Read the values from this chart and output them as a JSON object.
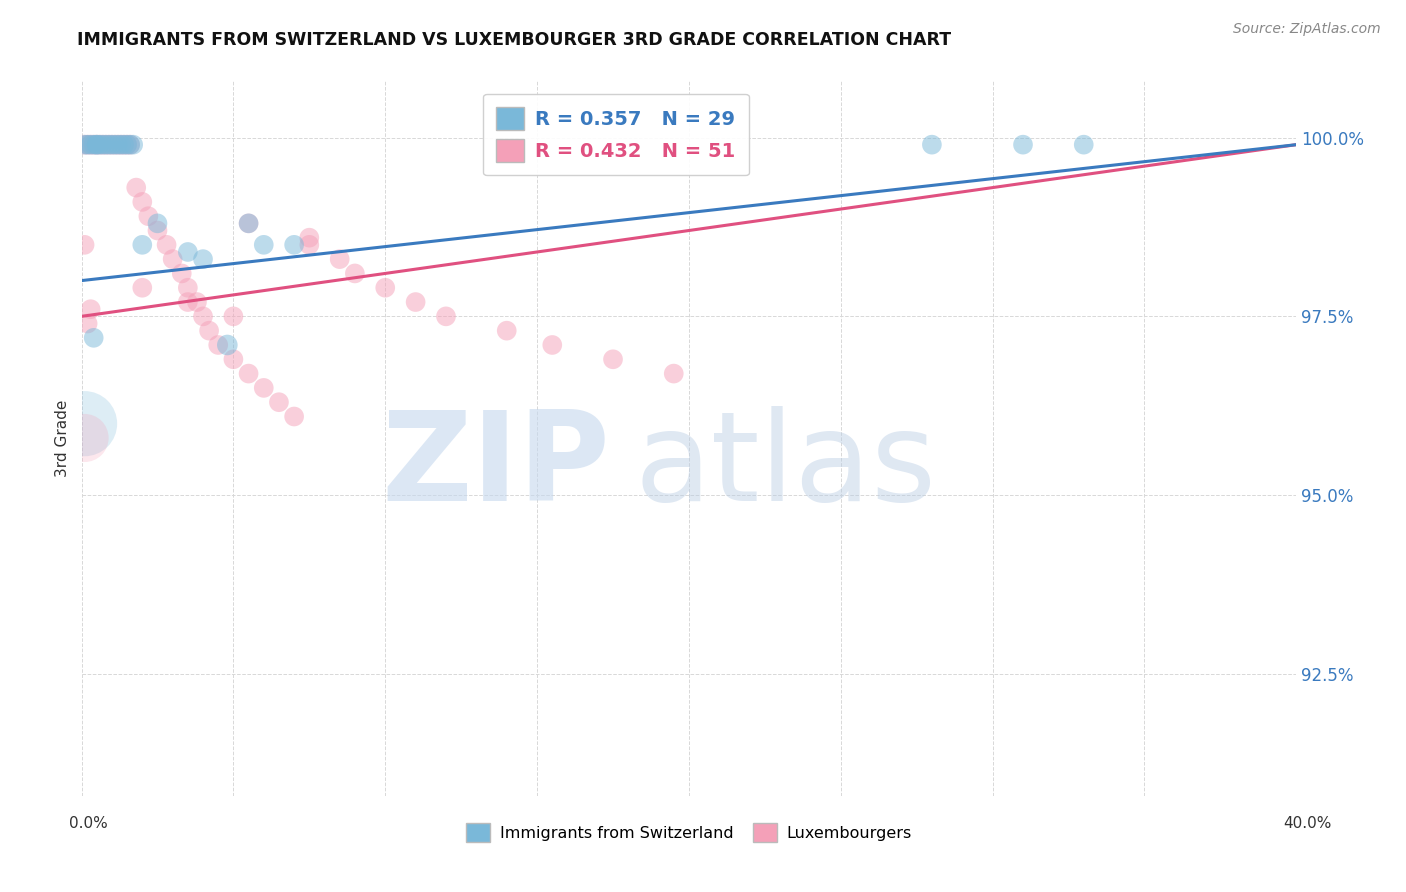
{
  "title": "IMMIGRANTS FROM SWITZERLAND VS LUXEMBOURGER 3RD GRADE CORRELATION CHART",
  "source": "Source: ZipAtlas.com",
  "ylabel": "3rd Grade",
  "ylabel_right_labels": [
    "100.0%",
    "97.5%",
    "95.0%",
    "92.5%"
  ],
  "ylabel_right_values": [
    1.0,
    0.975,
    0.95,
    0.925
  ],
  "x_min": 0.0,
  "x_max": 0.4,
  "y_min": 0.908,
  "y_max": 1.008,
  "swiss_color": "#7ab8d9",
  "lux_color": "#f4a0b8",
  "swiss_line_color": "#3a7abf",
  "lux_line_color": "#e05080",
  "R_swiss": 0.357,
  "N_swiss": 29,
  "R_lux": 0.432,
  "N_lux": 51,
  "grid_color": "#d8d8d8",
  "background_color": "#ffffff",
  "swiss_x": [
    0.001,
    0.002,
    0.003,
    0.004,
    0.005,
    0.005,
    0.006,
    0.007,
    0.008,
    0.009,
    0.01,
    0.011,
    0.012,
    0.013,
    0.014,
    0.015,
    0.016,
    0.017,
    0.02,
    0.025,
    0.035,
    0.04,
    0.055,
    0.06,
    0.07,
    0.28,
    0.31,
    0.33,
    0.004
  ],
  "swiss_y": [
    0.999,
    0.999,
    0.999,
    0.999,
    0.999,
    0.999,
    0.999,
    0.999,
    0.999,
    0.999,
    0.999,
    0.999,
    0.999,
    0.999,
    0.999,
    0.999,
    0.999,
    0.999,
    0.985,
    0.988,
    0.984,
    0.983,
    0.988,
    0.985,
    0.985,
    0.999,
    0.999,
    0.999,
    0.972
  ],
  "swiss_sizes": [
    120,
    120,
    120,
    120,
    120,
    120,
    120,
    120,
    120,
    120,
    120,
    120,
    120,
    120,
    120,
    120,
    120,
    120,
    120,
    120,
    120,
    120,
    120,
    120,
    120,
    120,
    120,
    120,
    120
  ],
  "lux_x": [
    0.001,
    0.002,
    0.003,
    0.004,
    0.005,
    0.006,
    0.007,
    0.008,
    0.009,
    0.01,
    0.011,
    0.012,
    0.013,
    0.014,
    0.015,
    0.016,
    0.018,
    0.02,
    0.022,
    0.025,
    0.028,
    0.03,
    0.033,
    0.035,
    0.038,
    0.04,
    0.042,
    0.045,
    0.05,
    0.055,
    0.06,
    0.065,
    0.07,
    0.075,
    0.085,
    0.09,
    0.1,
    0.11,
    0.12,
    0.14,
    0.155,
    0.175,
    0.195,
    0.055,
    0.075,
    0.02,
    0.035,
    0.05,
    0.003,
    0.002,
    0.001
  ],
  "lux_y": [
    0.999,
    0.999,
    0.999,
    0.999,
    0.999,
    0.999,
    0.999,
    0.999,
    0.999,
    0.999,
    0.999,
    0.999,
    0.999,
    0.999,
    0.999,
    0.999,
    0.993,
    0.991,
    0.989,
    0.987,
    0.985,
    0.983,
    0.981,
    0.979,
    0.977,
    0.975,
    0.973,
    0.971,
    0.969,
    0.967,
    0.965,
    0.963,
    0.961,
    0.985,
    0.983,
    0.981,
    0.979,
    0.977,
    0.975,
    0.973,
    0.971,
    0.969,
    0.967,
    0.988,
    0.986,
    0.979,
    0.977,
    0.975,
    0.976,
    0.974,
    0.985
  ],
  "lux_sizes": [
    120,
    120,
    120,
    120,
    120,
    120,
    120,
    120,
    120,
    120,
    120,
    120,
    120,
    120,
    120,
    120,
    120,
    120,
    120,
    120,
    120,
    120,
    120,
    120,
    120,
    120,
    120,
    120,
    120,
    120,
    120,
    120,
    120,
    120,
    120,
    120,
    120,
    120,
    120,
    120,
    120,
    120,
    120,
    120,
    120,
    120,
    120,
    120,
    120,
    120,
    120
  ]
}
